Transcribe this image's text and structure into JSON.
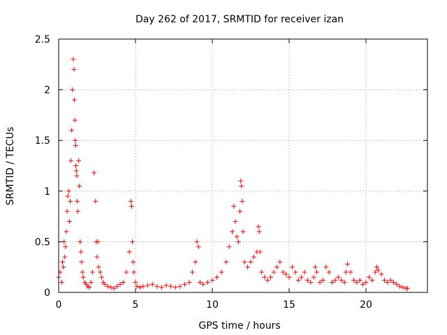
{
  "chart_data": {
    "type": "scatter",
    "title": "Day 262 of 2017, SRMTID for receiver izan",
    "xlabel": "GPS time / hours",
    "ylabel": "SRMTID / TECUs",
    "xlim": [
      0,
      24
    ],
    "ylim": [
      0,
      2.5
    ],
    "x_ticks": [
      0,
      5,
      10,
      15,
      20
    ],
    "x_tick_labels": [
      "0",
      "5",
      "10",
      "15",
      "20"
    ],
    "y_ticks": [
      0,
      0.5,
      1,
      1.5,
      2,
      2.5
    ],
    "y_tick_labels": [
      "0",
      "0.5",
      "1",
      "1.5",
      "2",
      "2.5"
    ],
    "grid": true,
    "marker": "+",
    "marker_color": "#ff0000",
    "series": [
      {
        "name": "SRMTID",
        "color": "#ff0000",
        "x": [
          0.0,
          0.1,
          0.2,
          0.25,
          0.3,
          0.35,
          0.4,
          0.45,
          0.5,
          0.55,
          0.6,
          0.65,
          0.7,
          0.75,
          0.8,
          0.85,
          0.9,
          0.95,
          1.0,
          1.02,
          1.05,
          1.08,
          1.1,
          1.12,
          1.15,
          1.18,
          1.2,
          1.25,
          1.3,
          1.35,
          1.4,
          1.45,
          1.5,
          1.55,
          1.6,
          1.7,
          1.8,
          1.9,
          2.0,
          2.1,
          2.2,
          2.3,
          2.4,
          2.45,
          2.5,
          2.55,
          2.6,
          2.7,
          2.8,
          2.9,
          3.0,
          3.2,
          3.4,
          3.6,
          3.8,
          4.0,
          4.2,
          4.4,
          4.6,
          4.7,
          4.75,
          4.8,
          4.85,
          4.9,
          5.0,
          5.1,
          5.3,
          5.5,
          5.8,
          6.1,
          6.4,
          6.7,
          7.0,
          7.3,
          7.6,
          7.9,
          8.2,
          8.5,
          8.7,
          8.9,
          9.0,
          9.1,
          9.2,
          9.4,
          9.7,
          10.0,
          10.3,
          10.6,
          10.9,
          11.1,
          11.3,
          11.4,
          11.5,
          11.6,
          11.7,
          11.8,
          11.85,
          11.9,
          11.95,
          12.0,
          12.1,
          12.3,
          12.5,
          12.7,
          12.9,
          13.0,
          13.05,
          13.1,
          13.2,
          13.4,
          13.6,
          13.8,
          14.0,
          14.2,
          14.4,
          14.6,
          14.8,
          15.0,
          15.2,
          15.4,
          15.6,
          15.8,
          16.0,
          16.2,
          16.4,
          16.6,
          16.7,
          16.8,
          17.0,
          17.2,
          17.4,
          17.6,
          17.8,
          18.0,
          18.2,
          18.4,
          18.6,
          18.7,
          18.8,
          19.0,
          19.2,
          19.4,
          19.6,
          19.8,
          20.0,
          20.2,
          20.4,
          20.6,
          20.7,
          20.8,
          21.0,
          21.2,
          21.4,
          21.6,
          21.8,
          22.0,
          22.2,
          22.4,
          22.6,
          22.7
        ],
        "values": [
          0.15,
          0.2,
          0.1,
          0.3,
          0.25,
          0.5,
          0.35,
          0.45,
          0.6,
          0.8,
          0.95,
          1.0,
          0.7,
          0.9,
          1.3,
          1.6,
          2.0,
          2.3,
          2.2,
          1.9,
          1.7,
          1.5,
          1.45,
          1.25,
          1.2,
          1.15,
          0.9,
          0.8,
          1.3,
          1.05,
          0.5,
          0.4,
          0.3,
          0.2,
          0.15,
          0.1,
          0.08,
          0.06,
          0.05,
          0.1,
          0.2,
          1.18,
          0.9,
          0.5,
          0.35,
          0.5,
          0.25,
          0.2,
          0.15,
          0.1,
          0.08,
          0.06,
          0.05,
          0.04,
          0.06,
          0.08,
          0.1,
          0.2,
          0.4,
          0.9,
          0.85,
          0.5,
          0.3,
          0.2,
          0.1,
          0.06,
          0.05,
          0.06,
          0.07,
          0.08,
          0.06,
          0.05,
          0.07,
          0.06,
          0.05,
          0.06,
          0.08,
          0.1,
          0.2,
          0.3,
          0.5,
          0.45,
          0.1,
          0.08,
          0.1,
          0.12,
          0.15,
          0.2,
          0.3,
          0.45,
          0.6,
          0.85,
          0.7,
          0.55,
          0.5,
          0.8,
          1.1,
          1.05,
          0.9,
          0.6,
          0.3,
          0.25,
          0.3,
          0.35,
          0.4,
          0.65,
          0.6,
          0.4,
          0.2,
          0.15,
          0.12,
          0.15,
          0.2,
          0.25,
          0.3,
          0.2,
          0.18,
          0.15,
          0.25,
          0.2,
          0.12,
          0.15,
          0.2,
          0.12,
          0.1,
          0.15,
          0.25,
          0.2,
          0.1,
          0.12,
          0.25,
          0.2,
          0.1,
          0.12,
          0.15,
          0.12,
          0.1,
          0.2,
          0.28,
          0.2,
          0.12,
          0.1,
          0.12,
          0.08,
          0.1,
          0.15,
          0.12,
          0.2,
          0.25,
          0.22,
          0.18,
          0.12,
          0.1,
          0.12,
          0.1,
          0.08,
          0.06,
          0.05,
          0.04,
          0.04
        ]
      }
    ]
  }
}
